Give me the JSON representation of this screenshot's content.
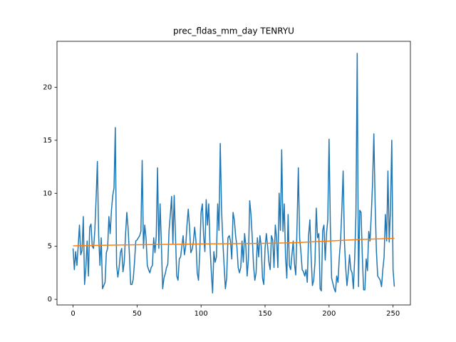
{
  "chart_data": {
    "type": "line",
    "title": "prec_fldas_mm_day TENRYU",
    "xlim": [
      -12.55,
      263.55
    ],
    "xticks": [
      0,
      50,
      100,
      150,
      200,
      250
    ],
    "ylim": [
      -0.53,
      24.33
    ],
    "yticks": [
      0,
      5,
      10,
      15,
      20
    ],
    "series": [
      {
        "color": "#1f77b4",
        "values": [
          4.8,
          2.8,
          4.5,
          3.2,
          5.0,
          7.0,
          4.2,
          4.6,
          7.8,
          1.4,
          3.0,
          5.5,
          2.2,
          6.8,
          7.1,
          5.0,
          4.8,
          6.5,
          9.5,
          13.0,
          6.0,
          3.2,
          5.8,
          1.0,
          1.3,
          1.6,
          4.4,
          4.8,
          7.8,
          6.2,
          8.4,
          9.8,
          10.5,
          16.2,
          3.2,
          2.1,
          3.0,
          4.4,
          4.8,
          2.6,
          3.5,
          6.1,
          8.2,
          6.7,
          4.3,
          1.4,
          1.4,
          1.9,
          3.5,
          5.5,
          5.6,
          5.8,
          6.0,
          6.4,
          13.1,
          4.8,
          7.0,
          5.8,
          3.2,
          2.8,
          2.5,
          3.0,
          3.2,
          5.8,
          4.4,
          6.0,
          12.4,
          4.8,
          9.0,
          5.2,
          1.0,
          2.0,
          2.4,
          3.0,
          3.3,
          6.5,
          8.0,
          9.7,
          5.2,
          9.8,
          6.0,
          2.2,
          1.8,
          3.8,
          4.0,
          5.0,
          6.0,
          4.2,
          5.0,
          7.0,
          8.5,
          6.8,
          4.4,
          4.7,
          5.4,
          6.8,
          5.5,
          2.5,
          1.8,
          4.5,
          8.2,
          9.0,
          6.0,
          4.5,
          9.4,
          7.0,
          9.0,
          5.0,
          2.6,
          0.6,
          4.5,
          3.5,
          4.0,
          9.0,
          6.5,
          14.7,
          8.5,
          5.5,
          3.2,
          1.0,
          2.0,
          5.8,
          6.0,
          5.5,
          3.8,
          8.2,
          7.5,
          6.0,
          5.0,
          3.0,
          2.5,
          3.0,
          5.5,
          3.5,
          6.2,
          5.0,
          2.2,
          3.8,
          9.3,
          8.0,
          5.8,
          3.2,
          1.8,
          2.5,
          5.8,
          4.0,
          6.0,
          5.0,
          2.0,
          1.4,
          4.8,
          6.2,
          5.0,
          3.5,
          2.8,
          6.0,
          5.6,
          3.0,
          7.0,
          5.8,
          3.0,
          10.0,
          6.5,
          14.1,
          6.4,
          9.0,
          4.0,
          2.0,
          8.0,
          3.2,
          2.8,
          4.2,
          5.5,
          3.3,
          2.3,
          7.0,
          12.4,
          5.8,
          4.5,
          2.8,
          2.6,
          2.2,
          2.8,
          1.6,
          6.0,
          7.5,
          4.0,
          1.3,
          1.8,
          3.5,
          8.6,
          5.8,
          6.2,
          1.0,
          0.8,
          6.5,
          7.0,
          3.7,
          6.2,
          7.5,
          15.1,
          7.0,
          2.0,
          1.5,
          1.0,
          0.7,
          2.2,
          1.6,
          4.0,
          5.5,
          8.5,
          12.1,
          5.5,
          3.0,
          1.3,
          2.5,
          4.2,
          2.8,
          2.5,
          1.0,
          3.8,
          8.0,
          23.2,
          1.2,
          8.4,
          8.2,
          4.0,
          0.9,
          0.9,
          3.8,
          2.7,
          6.4,
          5.5,
          8.0,
          11.0,
          15.6,
          9.0,
          4.5,
          2.2,
          2.0,
          1.8,
          1.2,
          2.8,
          4.0,
          8.0,
          5.5,
          12.1,
          5.4,
          8.5,
          15.0,
          2.8,
          1.2
        ]
      },
      {
        "color": "#ff7f0e",
        "x": [
          0,
          50,
          100,
          150,
          175,
          200,
          225,
          251
        ],
        "values": [
          5.05,
          5.15,
          5.22,
          5.28,
          5.35,
          5.5,
          5.65,
          5.75
        ]
      }
    ]
  }
}
